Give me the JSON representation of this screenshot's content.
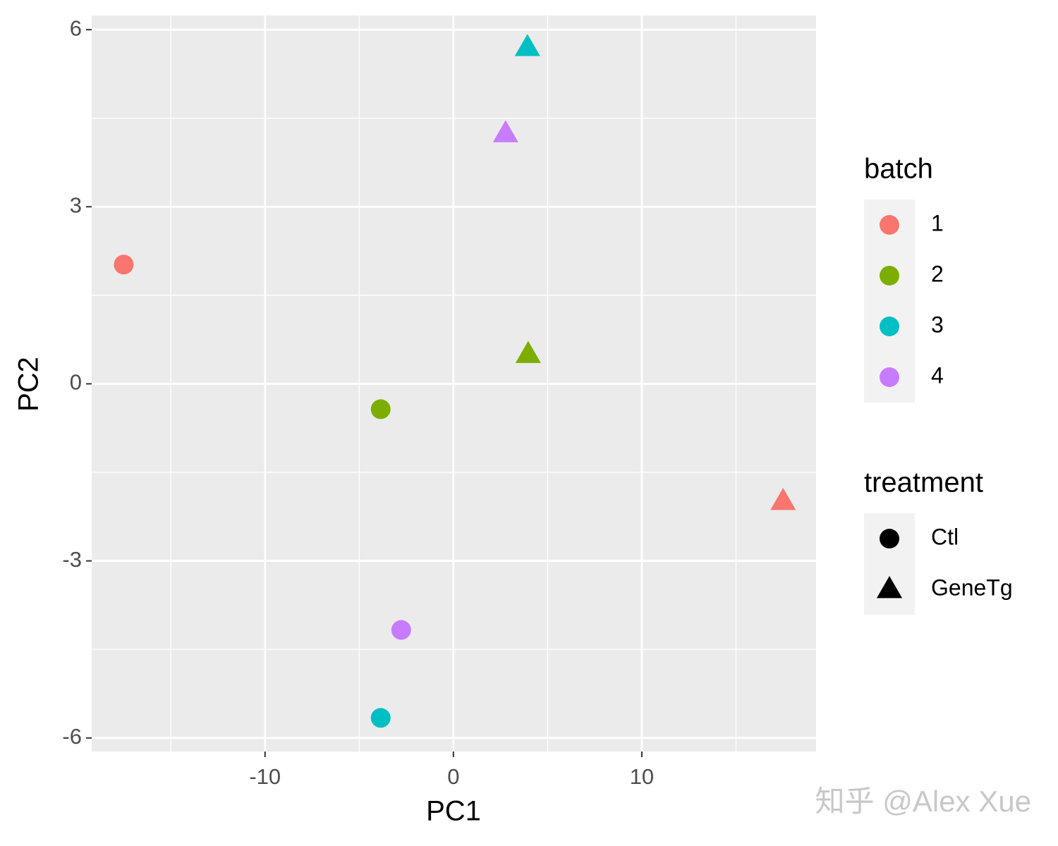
{
  "chart_data": {
    "type": "scatter",
    "x_label": "PC1",
    "y_label": "PC2",
    "xlim": [
      -19.2,
      19.25
    ],
    "ylim": [
      -6.23,
      6.24
    ],
    "xticks": [
      -10,
      0,
      10
    ],
    "yticks": [
      -6,
      -3,
      0,
      3,
      6
    ],
    "xminor": [
      -15,
      -5,
      5,
      15
    ],
    "yminor": [
      -4.5,
      -1.5,
      1.5,
      4.5
    ],
    "grid": true,
    "color_legend_title": "batch",
    "series": [
      {
        "name": "1",
        "color": "#F8766D",
        "x": [
          -17.5,
          17.5
        ],
        "values": [
          2.02,
          -1.99
        ],
        "treatment": [
          "Ctl",
          "GeneTg"
        ]
      },
      {
        "name": "2",
        "color": "#7CAE00",
        "x": [
          -3.86,
          3.97
        ],
        "values": [
          -0.43,
          0.5
        ],
        "treatment": [
          "Ctl",
          "GeneTg"
        ]
      },
      {
        "name": "3",
        "color": "#00BFC4",
        "x": [
          -3.86,
          3.93
        ],
        "values": [
          -5.66,
          5.7
        ],
        "treatment": [
          "Ctl",
          "GeneTg"
        ]
      },
      {
        "name": "4",
        "color": "#C77CFF",
        "x": [
          -2.77,
          2.77
        ],
        "values": [
          -4.17,
          4.24
        ],
        "treatment": [
          "Ctl",
          "GeneTg"
        ]
      }
    ],
    "shape_legend": {
      "title": "treatment",
      "entries": [
        {
          "name": "Ctl",
          "shape": "circle"
        },
        {
          "name": "GeneTg",
          "shape": "triangle"
        }
      ]
    },
    "watermark": "知乎 @Alex Xue"
  }
}
